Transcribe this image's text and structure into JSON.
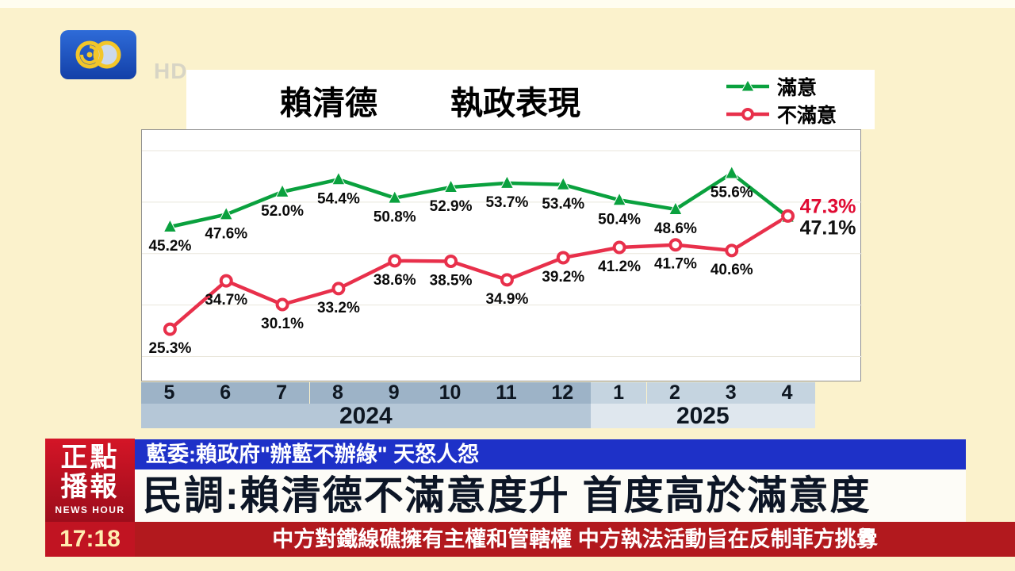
{
  "channel": {
    "logo_icon": "phoenix-tv-logo",
    "hd_label": "HD"
  },
  "chart": {
    "title_left": "賴清德",
    "title_right": "執政表現"
  },
  "chart_data": {
    "type": "line",
    "title": "賴清德 執政表現",
    "x": [
      "5",
      "6",
      "7",
      "8",
      "9",
      "10",
      "11",
      "12",
      "1",
      "2",
      "3",
      "4"
    ],
    "series": [
      {
        "name": "滿意",
        "marker": "triangle",
        "color": "#0aa13e",
        "values": [
          45.2,
          47.6,
          52.0,
          54.4,
          50.8,
          52.9,
          53.7,
          53.4,
          50.4,
          48.6,
          55.6,
          47.1
        ]
      },
      {
        "name": "不滿意",
        "marker": "circle",
        "color": "#e8304b",
        "values": [
          25.3,
          34.7,
          30.1,
          33.2,
          38.6,
          38.5,
          34.9,
          39.2,
          41.2,
          41.7,
          40.6,
          47.3
        ]
      }
    ],
    "end_labels": [
      {
        "text": "47.3%",
        "color": "#e00a32"
      },
      {
        "text": "47.1%",
        "color": "#111111"
      }
    ],
    "year_groups": [
      {
        "label": "2024",
        "span": 8
      },
      {
        "label": "2025",
        "span": 4
      }
    ],
    "band_colors": {
      "months": [
        "#9db3c7",
        "#c5d4e0"
      ],
      "years": [
        "#b5c7d7",
        "#dfe7ee"
      ]
    },
    "ylim": [
      15,
      64
    ],
    "grid": true,
    "legend_position": "top-right"
  },
  "banner": {
    "program_line1": "正點",
    "program_line2": "播報",
    "program_sub": "NEWS HOUR",
    "time": "17:18",
    "strap": "藍委:賴政府\"辦藍不辦綠\" 天怒人怨",
    "headline": "民調:賴清德不滿意度升 首度高於滿意度",
    "ticker": "中方對鐵線礁擁有主權和管轄權  中方執法活動旨在反制菲方挑釁"
  }
}
